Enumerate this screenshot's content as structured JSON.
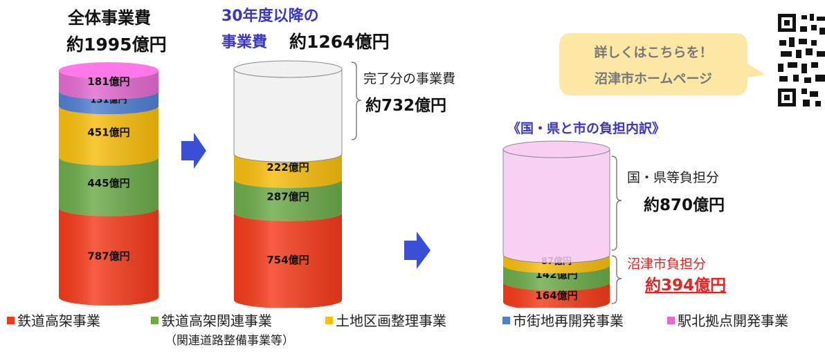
{
  "colors": {
    "railway": "#f53b1a",
    "related": "#6cab4a",
    "land": "#f7be0c",
    "urban": "#4f7fd1",
    "north": "#e46ad0",
    "done": "#f0f0f0",
    "burden": "#f7caf2",
    "blue_title": "#3a36c9",
    "red_text": "#e8231f",
    "arrow": "#3a4fd6",
    "bubble": "#fde7a4"
  },
  "header": {
    "total_title": "全体事業費",
    "total_amount": "約1995億円",
    "after30_line1": "30年度以降の",
    "after30_line2": "事業費",
    "after30_amount": "約1264億円",
    "completed_label": "完了分の事業費",
    "completed_amount": "約732億円",
    "burden_title": "《国・県と市の負担内訳》",
    "national_label": "国・県等負担分",
    "national_amount": "約870億円",
    "city_label": "沼津市負担分",
    "city_amount": "約394億円"
  },
  "callout": {
    "line1": "詳しくはこちらを！",
    "line2": "沼津市ホームページ"
  },
  "legend": {
    "railway": "鉄道高架事業",
    "related": "鉄道高架関連事業",
    "related_sub": "（関連道路整備事業等）",
    "land": "土地区画整理事業",
    "urban": "市街地再開発事業",
    "north": "駅北拠点開発事業"
  },
  "chart_data": [
    {
      "type": "bar",
      "title": "全体事業費 約1995億円",
      "unit": "億円",
      "series": [
        {
          "name": "鉄道高架事業",
          "value": 787,
          "label": "787億円"
        },
        {
          "name": "鉄道高架関連事業",
          "value": 445,
          "label": "445億円"
        },
        {
          "name": "土地区画整理事業",
          "value": 451,
          "label": "451億円"
        },
        {
          "name": "市街地再開発事業",
          "value": 131,
          "label": "131億円"
        },
        {
          "name": "駅北拠点開発事業",
          "value": 181,
          "label": "181億円"
        }
      ]
    },
    {
      "type": "bar",
      "title": "30年度以降の事業費 約1264億円",
      "unit": "億円",
      "series": [
        {
          "name": "鉄道高架事業",
          "value": 754,
          "label": "754億円"
        },
        {
          "name": "鉄道高架関連事業",
          "value": 287,
          "label": "287億円"
        },
        {
          "name": "土地区画整理事業",
          "value": 222,
          "label": "222億円"
        },
        {
          "name": "完了分の事業費",
          "value": 732,
          "label": ""
        }
      ]
    },
    {
      "type": "bar",
      "title": "《国・県と市の負担内訳》",
      "unit": "億円",
      "series": [
        {
          "name": "鉄道高架事業",
          "value": 164,
          "label": "164億円"
        },
        {
          "name": "鉄道高架関連事業",
          "value": 142,
          "label": "142億円"
        },
        {
          "name": "土地区画整理事業",
          "value": 87,
          "label": "87億円"
        },
        {
          "name": "国・県等負担分",
          "value": 870,
          "label": ""
        }
      ]
    }
  ]
}
